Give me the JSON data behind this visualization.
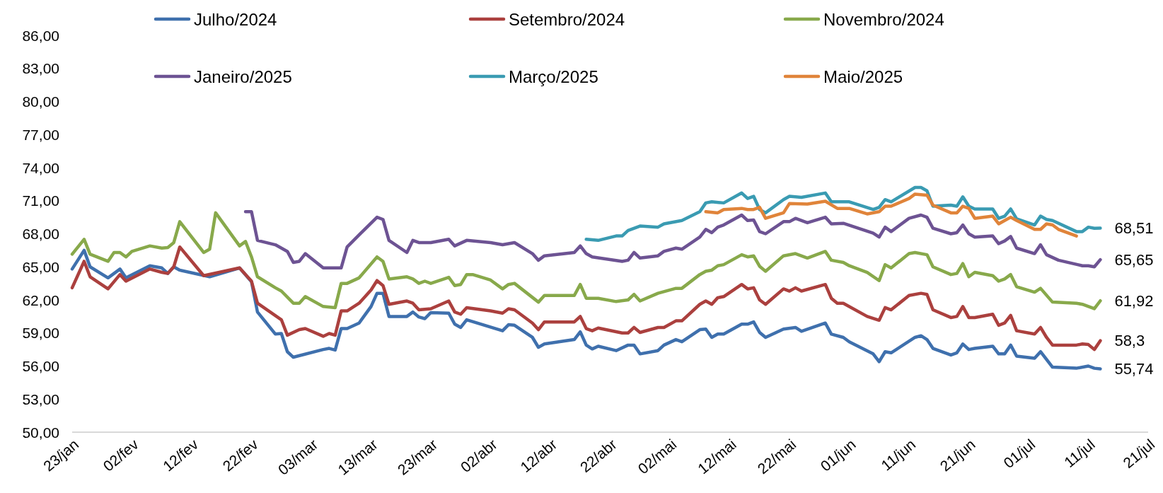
{
  "chart_data": {
    "type": "line",
    "legend": "top",
    "xlim": [
      "--01-23",
      "--07-21"
    ],
    "xticks": [
      {
        "value": "--01-23",
        "label": "23/jan"
      },
      {
        "value": "--02-02",
        "label": "02/fev"
      },
      {
        "value": "--02-12",
        "label": "12/fev"
      },
      {
        "value": "--02-22",
        "label": "22/fev"
      },
      {
        "value": "--03-03",
        "label": "03/mar"
      },
      {
        "value": "--03-13",
        "label": "13/mar"
      },
      {
        "value": "--03-23",
        "label": "23/mar"
      },
      {
        "value": "--04-02",
        "label": "02/abr"
      },
      {
        "value": "--04-12",
        "label": "12/abr"
      },
      {
        "value": "--04-22",
        "label": "22/abr"
      },
      {
        "value": "--05-02",
        "label": "02/mai"
      },
      {
        "value": "--05-12",
        "label": "12/mai"
      },
      {
        "value": "--05-22",
        "label": "22/mai"
      },
      {
        "value": "--06-01",
        "label": "01/jun"
      },
      {
        "value": "--06-11",
        "label": "11/jun"
      },
      {
        "value": "--06-21",
        "label": "21/jun"
      },
      {
        "value": "--07-01",
        "label": "01/jul"
      },
      {
        "value": "--07-11",
        "label": "11/jul"
      },
      {
        "value": "--07-21",
        "label": "21/jul"
      }
    ],
    "ylim": [
      50,
      86
    ],
    "yticks": [
      {
        "value": 50,
        "label": "50,00"
      },
      {
        "value": 53,
        "label": "53,00"
      },
      {
        "value": 56,
        "label": "56,00"
      },
      {
        "value": 59,
        "label": "59,00"
      },
      {
        "value": 62,
        "label": "62,00"
      },
      {
        "value": 65,
        "label": "65,00"
      },
      {
        "value": 68,
        "label": "68,00"
      },
      {
        "value": 71,
        "label": "71,00"
      },
      {
        "value": 74,
        "label": "74,00"
      },
      {
        "value": 77,
        "label": "77,00"
      },
      {
        "value": 80,
        "label": "80,00"
      },
      {
        "value": 83,
        "label": "83,00"
      },
      {
        "value": 86,
        "label": "86,00"
      }
    ],
    "series": [
      {
        "name": "Julho/2024",
        "color": "#3f70ad",
        "x": [
          "--01-23",
          "--01-25",
          "--01-26",
          "--01-29",
          "--01-31",
          "--02-01",
          "--02-05",
          "--02-07",
          "--02-08",
          "--02-09",
          "--02-10",
          "--02-15",
          "--02-20",
          "--02-22",
          "--02-23",
          "--02-26",
          "--02-27",
          "--02-28",
          "--02-29",
          "--03-05",
          "--03-06",
          "--03-07",
          "--03-08",
          "--03-09",
          "--03-11",
          "--03-13",
          "--03-14",
          "--03-15",
          "--03-16",
          "--03-19",
          "--03-20",
          "--03-21",
          "--03-22",
          "--03-23",
          "--03-26",
          "--03-27",
          "--03-28",
          "--03-29",
          "--04-04",
          "--04-05",
          "--04-06",
          "--04-09",
          "--04-10",
          "--04-11",
          "--04-16",
          "--04-17",
          "--04-18",
          "--04-19",
          "--04-20",
          "--04-23",
          "--04-25",
          "--04-26",
          "--04-27",
          "--04-30",
          "--05-01",
          "--05-03",
          "--05-04",
          "--05-07",
          "--05-08",
          "--05-09",
          "--05-10",
          "--05-11",
          "--05-14",
          "--05-15",
          "--05-16",
          "--05-17",
          "--05-18",
          "--05-21",
          "--05-23",
          "--05-24",
          "--05-28",
          "--05-29",
          "--05-31",
          "--06-01",
          "--06-05",
          "--06-06",
          "--06-07",
          "--06-08",
          "--06-12",
          "--06-13",
          "--06-14",
          "--06-15",
          "--06-18",
          "--06-19",
          "--06-20",
          "--06-21",
          "--06-22",
          "--06-25",
          "--06-26",
          "--06-27",
          "--06-28",
          "--06-29",
          "--07-02",
          "--07-03",
          "--07-05",
          "--07-09",
          "--07-11",
          "--07-12",
          "--07-13"
        ],
        "values": [
          64.8,
          66.5,
          65.0,
          64.0,
          64.8,
          64.0,
          65.1,
          64.9,
          64.4,
          65.0,
          64.7,
          64.1,
          64.9,
          63.65,
          60.9,
          58.9,
          58.95,
          57.3,
          56.8,
          57.5,
          57.6,
          57.45,
          59.4,
          59.4,
          59.9,
          61.4,
          62.6,
          62.6,
          60.5,
          60.5,
          60.9,
          60.45,
          60.3,
          60.85,
          60.8,
          59.8,
          59.5,
          60.2,
          59.2,
          59.75,
          59.7,
          58.6,
          57.7,
          58.0,
          58.4,
          59.1,
          57.9,
          57.55,
          57.8,
          57.4,
          57.9,
          57.9,
          57.1,
          57.4,
          57.9,
          58.4,
          58.2,
          59.3,
          59.35,
          58.6,
          58.9,
          58.9,
          59.8,
          59.8,
          60.0,
          59.05,
          58.6,
          59.35,
          59.5,
          59.15,
          59.9,
          58.9,
          58.6,
          58.2,
          57.1,
          56.4,
          57.3,
          57.2,
          58.6,
          58.75,
          58.4,
          57.6,
          57.0,
          57.2,
          58.0,
          57.5,
          57.6,
          57.8,
          57.1,
          57.1,
          57.9,
          56.9,
          56.7,
          57.3,
          55.9,
          55.8,
          56.0,
          55.8,
          55.74
        ]
      },
      {
        "name": "Setembro/2024",
        "color": "#ab403e",
        "x": [
          "--01-23",
          "--01-25",
          "--01-26",
          "--01-29",
          "--01-31",
          "--02-01",
          "--02-05",
          "--02-07",
          "--02-08",
          "--02-09",
          "--02-10",
          "--02-14",
          "--02-20",
          "--02-22",
          "--02-23",
          "--02-27",
          "--02-28",
          "--03-01",
          "--03-02",
          "--03-05",
          "--03-06",
          "--03-07",
          "--03-08",
          "--03-09",
          "--03-11",
          "--03-13",
          "--03-14",
          "--03-15",
          "--03-16",
          "--03-19",
          "--03-20",
          "--03-21",
          "--03-23",
          "--03-26",
          "--03-27",
          "--03-28",
          "--03-29",
          "--04-02",
          "--04-04",
          "--04-05",
          "--04-06",
          "--04-09",
          "--04-10",
          "--04-11",
          "--04-16",
          "--04-17",
          "--04-18",
          "--04-19",
          "--04-20",
          "--04-24",
          "--04-25",
          "--04-26",
          "--04-27",
          "--04-30",
          "--05-01",
          "--05-03",
          "--05-04",
          "--05-07",
          "--05-08",
          "--05-09",
          "--05-10",
          "--05-11",
          "--05-14",
          "--05-15",
          "--05-16",
          "--05-17",
          "--05-18",
          "--05-21",
          "--05-22",
          "--05-23",
          "--05-24",
          "--05-28",
          "--05-29",
          "--05-30",
          "--05-31",
          "--06-04",
          "--06-06",
          "--06-07",
          "--06-08",
          "--06-11",
          "--06-13",
          "--06-14",
          "--06-15",
          "--06-18",
          "--06-19",
          "--06-20",
          "--06-21",
          "--06-22",
          "--06-25",
          "--06-26",
          "--06-27",
          "--06-28",
          "--06-29",
          "--07-02",
          "--07-03",
          "--07-04",
          "--07-05",
          "--07-09",
          "--07-10",
          "--07-11",
          "--07-12",
          "--07-13"
        ],
        "values": [
          63.1,
          65.5,
          64.1,
          63.0,
          64.3,
          63.7,
          64.8,
          64.5,
          64.4,
          65.0,
          66.8,
          64.2,
          64.9,
          63.7,
          61.7,
          60.2,
          58.8,
          59.3,
          59.4,
          58.7,
          58.95,
          58.8,
          61.0,
          61.0,
          61.7,
          62.9,
          63.75,
          63.3,
          61.6,
          61.9,
          61.7,
          61.1,
          61.2,
          61.9,
          60.9,
          60.7,
          61.3,
          61.0,
          60.8,
          61.2,
          61.1,
          59.9,
          59.3,
          60.0,
          60.0,
          60.5,
          59.4,
          59.2,
          59.45,
          59.0,
          59.0,
          59.5,
          59.05,
          59.5,
          59.5,
          60.1,
          60.1,
          61.6,
          61.9,
          61.6,
          62.2,
          62.3,
          63.4,
          63.0,
          63.1,
          62.0,
          61.6,
          63.0,
          62.8,
          63.1,
          62.8,
          63.4,
          62.15,
          61.7,
          61.7,
          60.5,
          60.15,
          61.3,
          61.1,
          62.4,
          62.6,
          62.5,
          61.1,
          60.4,
          60.5,
          61.4,
          60.4,
          60.4,
          60.7,
          59.7,
          59.9,
          60.6,
          59.2,
          58.9,
          59.5,
          58.6,
          57.9,
          57.9,
          58.0,
          57.95,
          57.5,
          58.3
        ]
      },
      {
        "name": "Novembro/2024",
        "color": "#88a94b",
        "x": [
          "--01-23",
          "--01-25",
          "--01-26",
          "--01-29",
          "--01-30",
          "--01-31",
          "--02-01",
          "--02-02",
          "--02-05",
          "--02-07",
          "--02-08",
          "--02-09",
          "--02-10",
          "--02-14",
          "--02-15",
          "--02-16",
          "--02-20",
          "--02-21",
          "--02-22",
          "--02-23",
          "--02-26",
          "--02-27",
          "--02-29",
          "--03-01",
          "--03-02",
          "--03-05",
          "--03-07",
          "--03-08",
          "--03-09",
          "--03-11",
          "--03-14",
          "--03-15",
          "--03-16",
          "--03-19",
          "--03-20",
          "--03-21",
          "--03-22",
          "--03-23",
          "--03-26",
          "--03-27",
          "--03-28",
          "--03-29",
          "--03-30",
          "--04-02",
          "--04-04",
          "--04-05",
          "--04-06",
          "--04-10",
          "--04-11",
          "--04-16",
          "--04-17",
          "--04-18",
          "--04-20",
          "--04-23",
          "--04-25",
          "--04-26",
          "--04-27",
          "--04-30",
          "--05-03",
          "--05-04",
          "--05-07",
          "--05-08",
          "--05-09",
          "--05-10",
          "--05-11",
          "--05-14",
          "--05-15",
          "--05-16",
          "--05-17",
          "--05-18",
          "--05-21",
          "--05-23",
          "--05-25",
          "--05-28",
          "--05-29",
          "--05-31",
          "--06-01",
          "--06-04",
          "--06-06",
          "--06-07",
          "--06-08",
          "--06-11",
          "--06-12",
          "--06-14",
          "--06-15",
          "--06-18",
          "--06-19",
          "--06-20",
          "--06-21",
          "--06-22",
          "--06-25",
          "--06-26",
          "--06-27",
          "--06-28",
          "--06-29",
          "--07-02",
          "--07-03",
          "--07-05",
          "--07-09",
          "--07-10",
          "--07-12",
          "--07-13"
        ],
        "values": [
          66.15,
          67.5,
          66.15,
          65.5,
          66.3,
          66.3,
          65.9,
          66.4,
          66.9,
          66.7,
          66.75,
          67.2,
          69.1,
          66.3,
          66.6,
          69.9,
          66.9,
          67.3,
          65.9,
          64.1,
          63.1,
          62.8,
          61.7,
          61.7,
          62.3,
          61.4,
          61.3,
          63.5,
          63.5,
          64.0,
          65.9,
          65.5,
          63.9,
          64.1,
          63.9,
          63.5,
          63.7,
          63.5,
          64.05,
          63.3,
          63.4,
          64.3,
          64.3,
          63.8,
          63.0,
          63.4,
          63.5,
          61.8,
          62.4,
          62.4,
          63.4,
          62.15,
          62.15,
          61.85,
          62.0,
          62.5,
          61.9,
          62.6,
          63.05,
          63.05,
          64.3,
          64.6,
          64.7,
          65.1,
          65.2,
          66.1,
          65.9,
          66.0,
          65.05,
          64.6,
          66.0,
          66.2,
          65.8,
          66.4,
          65.6,
          65.4,
          65.1,
          64.5,
          63.75,
          65.2,
          64.9,
          66.2,
          66.3,
          66.1,
          65.0,
          64.3,
          64.4,
          65.3,
          64.1,
          64.5,
          64.2,
          63.7,
          63.9,
          64.3,
          63.2,
          62.7,
          63.05,
          61.8,
          61.7,
          61.6,
          61.2,
          61.92
        ]
      },
      {
        "name": "Janeiro/2025",
        "color": "#6d5393",
        "x": [
          "--02-21",
          "--02-22",
          "--02-23",
          "--02-26",
          "--02-28",
          "--02-29",
          "--03-01",
          "--03-02",
          "--03-05",
          "--03-08",
          "--03-09",
          "--03-11",
          "--03-14",
          "--03-15",
          "--03-16",
          "--03-19",
          "--03-20",
          "--03-21",
          "--03-23",
          "--03-26",
          "--03-27",
          "--03-29",
          "--04-02",
          "--04-04",
          "--04-06",
          "--04-09",
          "--04-10",
          "--04-11",
          "--04-16",
          "--04-17",
          "--04-18",
          "--04-19",
          "--04-24",
          "--04-25",
          "--04-26",
          "--04-27",
          "--04-30",
          "--05-01",
          "--05-03",
          "--05-04",
          "--05-07",
          "--05-08",
          "--05-09",
          "--05-10",
          "--05-11",
          "--05-14",
          "--05-15",
          "--05-16",
          "--05-17",
          "--05-18",
          "--05-21",
          "--05-22",
          "--05-23",
          "--05-25",
          "--05-28",
          "--05-29",
          "--05-31",
          "--06-05",
          "--06-06",
          "--06-07",
          "--06-08",
          "--06-11",
          "--06-13",
          "--06-14",
          "--06-15",
          "--06-18",
          "--06-19",
          "--06-20",
          "--06-21",
          "--06-22",
          "--06-25",
          "--06-26",
          "--06-27",
          "--06-28",
          "--06-29",
          "--07-02",
          "--07-03",
          "--07-04",
          "--07-06",
          "--07-10",
          "--07-11",
          "--07-12",
          "--07-13"
        ],
        "values": [
          70.0,
          70.0,
          67.4,
          67.0,
          66.4,
          65.4,
          65.5,
          66.2,
          64.9,
          64.9,
          66.8,
          67.9,
          69.5,
          69.3,
          67.4,
          66.3,
          67.4,
          67.2,
          67.2,
          67.5,
          66.9,
          67.4,
          67.2,
          67.0,
          67.2,
          66.2,
          65.6,
          66.0,
          66.3,
          66.9,
          66.2,
          65.9,
          65.5,
          65.6,
          66.3,
          65.8,
          66.0,
          66.4,
          66.7,
          66.6,
          67.7,
          68.4,
          68.1,
          68.6,
          68.8,
          69.7,
          69.2,
          69.25,
          68.2,
          68.0,
          69.1,
          69.1,
          69.4,
          69.0,
          69.5,
          68.9,
          68.95,
          68.05,
          67.7,
          68.6,
          68.2,
          69.4,
          69.7,
          69.5,
          68.5,
          68.0,
          68.1,
          68.8,
          68.0,
          67.7,
          67.8,
          67.1,
          67.35,
          67.75,
          66.7,
          66.2,
          67.0,
          66.1,
          65.6,
          65.1,
          65.1,
          65.0,
          65.65
        ]
      },
      {
        "name": "Março/2025",
        "color": "#3a9bb2",
        "x": [
          "--04-18",
          "--04-20",
          "--04-23",
          "--04-24",
          "--04-25",
          "--04-27",
          "--04-30",
          "--05-01",
          "--05-04",
          "--05-07",
          "--05-08",
          "--05-09",
          "--05-11",
          "--05-14",
          "--05-15",
          "--05-16",
          "--05-17",
          "--05-18",
          "--05-21",
          "--05-22",
          "--05-24",
          "--05-28",
          "--05-29",
          "--06-01",
          "--06-05",
          "--06-06",
          "--06-07",
          "--06-08",
          "--06-12",
          "--06-13",
          "--06-14",
          "--06-15",
          "--06-18",
          "--06-19",
          "--06-20",
          "--06-21",
          "--06-22",
          "--06-25",
          "--06-26",
          "--06-27",
          "--06-28",
          "--06-29",
          "--07-02",
          "--07-03",
          "--07-04",
          "--07-05",
          "--07-09",
          "--07-10",
          "--07-11",
          "--07-12",
          "--07-13"
        ],
        "values": [
          67.5,
          67.4,
          67.8,
          67.8,
          68.3,
          68.7,
          68.6,
          68.9,
          69.2,
          70.0,
          70.8,
          70.9,
          70.8,
          71.7,
          71.2,
          71.4,
          70.2,
          69.9,
          71.1,
          71.4,
          71.3,
          71.7,
          70.9,
          70.9,
          70.2,
          70.4,
          71.1,
          70.9,
          72.2,
          72.2,
          71.9,
          70.5,
          70.6,
          70.5,
          71.35,
          70.5,
          70.25,
          70.25,
          69.4,
          69.6,
          70.25,
          69.35,
          68.8,
          69.6,
          69.3,
          69.2,
          68.2,
          68.2,
          68.6,
          68.5,
          68.51
        ]
      },
      {
        "name": "Maio/2025",
        "color": "#e0843a",
        "x": [
          "--05-08",
          "--05-10",
          "--05-11",
          "--05-14",
          "--05-15",
          "--05-16",
          "--05-17",
          "--05-18",
          "--05-21",
          "--05-22",
          "--05-25",
          "--05-28",
          "--05-30",
          "--06-01",
          "--06-04",
          "--06-06",
          "--06-07",
          "--06-08",
          "--06-11",
          "--06-12",
          "--06-14",
          "--06-15",
          "--06-18",
          "--06-19",
          "--06-20",
          "--06-21",
          "--06-22",
          "--06-25",
          "--06-26",
          "--06-27",
          "--06-28",
          "--06-29",
          "--07-02",
          "--07-03",
          "--07-04",
          "--07-05",
          "--07-06",
          "--07-09"
        ],
        "values": [
          70.0,
          69.9,
          70.2,
          70.3,
          70.2,
          70.2,
          70.4,
          69.4,
          69.9,
          70.75,
          70.7,
          70.95,
          70.3,
          70.3,
          69.8,
          70.0,
          70.5,
          70.5,
          71.2,
          71.6,
          71.5,
          70.6,
          69.9,
          69.9,
          70.5,
          70.3,
          69.4,
          69.6,
          68.9,
          69.2,
          69.5,
          69.2,
          68.4,
          68.4,
          68.9,
          68.8,
          68.4,
          67.8
        ]
      }
    ],
    "annotations": [
      {
        "text": "68,51",
        "x": "--07-13",
        "y": 68.51
      },
      {
        "text": "65,65",
        "x": "--07-13",
        "y": 65.65
      },
      {
        "text": "61,92",
        "x": "--07-13",
        "y": 61.92
      },
      {
        "text": "58,3",
        "x": "--07-13",
        "y": 58.3
      },
      {
        "text": "55,74",
        "x": "--07-13",
        "y": 55.74
      }
    ]
  }
}
